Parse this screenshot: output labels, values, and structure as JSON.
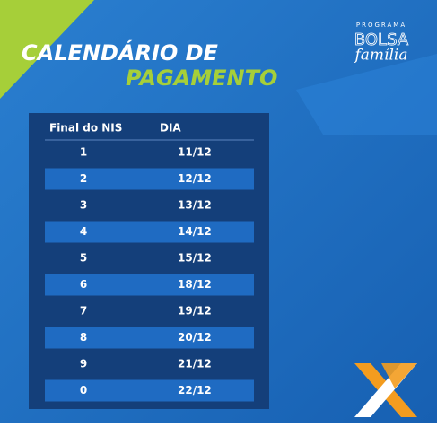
{
  "header": {
    "title_line1": "CALENDÁRIO DE",
    "title_line2": "PAGAMENTO"
  },
  "logo": {
    "program": "PROGRAMA",
    "name": "BOLSA",
    "script": "família"
  },
  "table": {
    "columns": [
      "Final do NIS",
      "DIA"
    ],
    "rows": [
      [
        "1",
        "11/12"
      ],
      [
        "2",
        "12/12"
      ],
      [
        "3",
        "13/12"
      ],
      [
        "4",
        "14/12"
      ],
      [
        "5",
        "15/12"
      ],
      [
        "6",
        "18/12"
      ],
      [
        "7",
        "19/12"
      ],
      [
        "8",
        "20/12"
      ],
      [
        "9",
        "21/12"
      ],
      [
        "0",
        "22/12"
      ]
    ]
  }
}
